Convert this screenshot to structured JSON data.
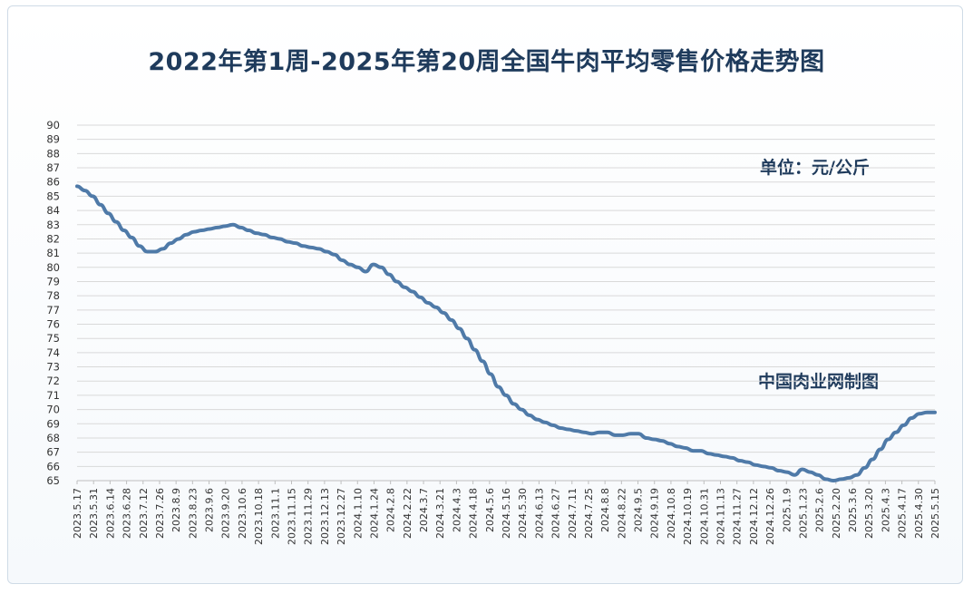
{
  "chart_data": {
    "type": "line",
    "title": "2022年第1周-2025年第20周全国牛肉平均零售价格走势图",
    "unit_note": "单位：元/公斤",
    "source_note": "中国肉业网制图",
    "ylim": [
      65,
      90
    ],
    "grid": "horizontal",
    "legend": "none",
    "colors": {
      "line": "#4f7aa8",
      "grid": "#d9d9d9",
      "title": "#1f3b5c"
    },
    "yticks": [
      65,
      66,
      67,
      68,
      69,
      70,
      71,
      72,
      73,
      74,
      75,
      76,
      77,
      78,
      79,
      80,
      81,
      82,
      83,
      84,
      85,
      86,
      87,
      88,
      89,
      90
    ],
    "xticks": [
      "2023.5.17",
      "2023.5.31",
      "2023.6.14",
      "2023.6.28",
      "2023.7.12",
      "2023.7.26",
      "2023.8.9",
      "2023.8.23",
      "2023.9.6",
      "2023.9.20",
      "2023.10.6",
      "2023.10.18",
      "2023.11.1",
      "2023.11.15",
      "2023.11.29",
      "2023.12.13",
      "2023.12.27",
      "2024.1.10",
      "2024.1.24",
      "2024.2.8",
      "2024.2.22",
      "2024.3.7",
      "2024.3.21",
      "2024.4.3",
      "2024.4.18",
      "2024.5.6",
      "2024.5.16",
      "2024.5.30",
      "2024.6.13",
      "2024.6.27",
      "2024.7.11",
      "2024.7.25",
      "2024.8.8",
      "2024.8.22",
      "2024.9.5",
      "2024.9.19",
      "2024.10.8",
      "2024.10.19",
      "2024.10.31",
      "2024.11.13",
      "2024.11.27",
      "2024.12.12",
      "2024.12.26",
      "2025.1.9",
      "2025.1.23",
      "2025.2.6",
      "2025.2.20",
      "2025.3.6",
      "2025.3.20",
      "2025.4.3",
      "2025.4.17",
      "2025.4.30",
      "2025.5.15"
    ],
    "series": [
      {
        "values": [
          85.7,
          85.4,
          85.0,
          84.4,
          83.8,
          83.2,
          82.6,
          82.1,
          81.5,
          81.1,
          81.1,
          81.3,
          81.7,
          82.0,
          82.3,
          82.5,
          82.6,
          82.7,
          82.8,
          82.9,
          83.0,
          82.8,
          82.6,
          82.4,
          82.3,
          82.1,
          82.0,
          81.8,
          81.7,
          81.5,
          81.4,
          81.3,
          81.1,
          80.9,
          80.5,
          80.2,
          80.0,
          79.7,
          80.2,
          80.0,
          79.5,
          79.0,
          78.6,
          78.3,
          77.9,
          77.5,
          77.2,
          76.8,
          76.3,
          75.7,
          75.0,
          74.2,
          73.4,
          72.5,
          71.6,
          71.0,
          70.4,
          70.0,
          69.6,
          69.3,
          69.1,
          68.9,
          68.7,
          68.6,
          68.5,
          68.4,
          68.3,
          68.4,
          68.4,
          68.2,
          68.2,
          68.3,
          68.3,
          68.0,
          67.9,
          67.8,
          67.6,
          67.4,
          67.3,
          67.1,
          67.1,
          66.9,
          66.8,
          66.7,
          66.6,
          66.4,
          66.3,
          66.1,
          66.0,
          65.9,
          65.7,
          65.6,
          65.4,
          65.8,
          65.6,
          65.4,
          65.1,
          65.0,
          65.1,
          65.2,
          65.4,
          65.9,
          66.5,
          67.2,
          67.9,
          68.4,
          68.9,
          69.4,
          69.7,
          69.8,
          69.8
        ]
      }
    ]
  }
}
